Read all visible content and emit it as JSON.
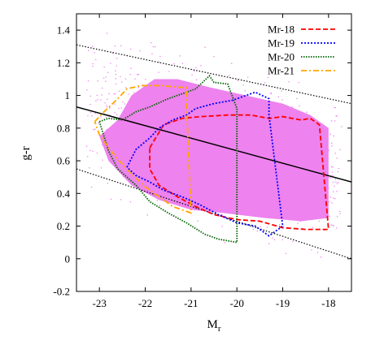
{
  "chart_data": {
    "type": "scatter",
    "title": "",
    "xlabel": "M",
    "xlabel_sub": "r",
    "ylabel": "g-r",
    "xlim": [
      -23.5,
      -17.5
    ],
    "ylim": [
      -0.2,
      1.5
    ],
    "x_ticks": [
      -23,
      -22,
      -21,
      -20,
      -19,
      -18
    ],
    "x_tick_labels": [
      "-23",
      "-22",
      "-21",
      "-20",
      "-19",
      "-18"
    ],
    "y_ticks": [
      -0.2,
      0,
      0.2,
      0.4,
      0.6,
      0.8,
      1,
      1.2,
      1.4
    ],
    "y_tick_labels": [
      "-0.2",
      "0",
      "0.2",
      "0.4",
      "0.6",
      "0.8",
      "1",
      "1.2",
      "1.4"
    ],
    "grid": false,
    "legend_position": "top-right",
    "scatter_cloud": {
      "color": "#ee82ee",
      "boundary": [
        [
          -22.6,
          0.85
        ],
        [
          -22.3,
          1.0
        ],
        [
          -21.8,
          1.1
        ],
        [
          -21.3,
          1.1
        ],
        [
          -20.6,
          1.05
        ],
        [
          -19.8,
          1.0
        ],
        [
          -19.0,
          0.95
        ],
        [
          -18.4,
          0.88
        ],
        [
          -18.0,
          0.8
        ],
        [
          -18.0,
          0.25
        ],
        [
          -18.6,
          0.23
        ],
        [
          -19.4,
          0.25
        ],
        [
          -20.3,
          0.28
        ],
        [
          -21.0,
          0.3
        ],
        [
          -21.7,
          0.36
        ],
        [
          -22.3,
          0.45
        ],
        [
          -22.8,
          0.6
        ],
        [
          -23.0,
          0.75
        ]
      ]
    },
    "reference_lines": [
      {
        "style": "solid",
        "color": "#000000",
        "points": [
          [
            -23.5,
            0.93
          ],
          [
            -17.5,
            0.47
          ]
        ]
      },
      {
        "style": "dotted",
        "color": "#000000",
        "points": [
          [
            -23.5,
            1.31
          ],
          [
            -17.5,
            0.95
          ]
        ]
      },
      {
        "style": "dotted",
        "color": "#000000",
        "points": [
          [
            -23.5,
            0.55
          ],
          [
            -17.5,
            0.0
          ]
        ]
      }
    ],
    "series": [
      {
        "name": "Mr-18",
        "color": "#ff0000",
        "dash": "6,3",
        "points": [
          [
            -21.9,
            0.68
          ],
          [
            -21.6,
            0.82
          ],
          [
            -21.2,
            0.86
          ],
          [
            -20.8,
            0.87
          ],
          [
            -20.2,
            0.88
          ],
          [
            -19.7,
            0.88
          ],
          [
            -19.3,
            0.86
          ],
          [
            -19.0,
            0.87
          ],
          [
            -18.6,
            0.85
          ],
          [
            -18.4,
            0.86
          ],
          [
            -18.2,
            0.82
          ],
          [
            -18.0,
            0.18
          ],
          [
            -18.5,
            0.18
          ],
          [
            -19.0,
            0.19
          ],
          [
            -19.5,
            0.23
          ],
          [
            -20.0,
            0.24
          ],
          [
            -20.5,
            0.27
          ],
          [
            -20.9,
            0.32
          ],
          [
            -21.3,
            0.38
          ],
          [
            -21.7,
            0.45
          ],
          [
            -21.9,
            0.55
          ],
          [
            -21.9,
            0.68
          ]
        ]
      },
      {
        "name": "Mr-19",
        "color": "#0000ff",
        "dash": "2,2",
        "points": [
          [
            -22.4,
            0.56
          ],
          [
            -22.2,
            0.67
          ],
          [
            -21.9,
            0.74
          ],
          [
            -21.7,
            0.8
          ],
          [
            -21.4,
            0.85
          ],
          [
            -21.1,
            0.88
          ],
          [
            -20.9,
            0.92
          ],
          [
            -20.5,
            0.95
          ],
          [
            -20.1,
            0.97
          ],
          [
            -19.6,
            1.02
          ],
          [
            -19.3,
            0.98
          ],
          [
            -19.3,
            0.88
          ],
          [
            -19.0,
            0.2
          ],
          [
            -19.3,
            0.14
          ],
          [
            -19.6,
            0.2
          ],
          [
            -20.0,
            0.22
          ],
          [
            -20.4,
            0.27
          ],
          [
            -20.8,
            0.33
          ],
          [
            -21.2,
            0.38
          ],
          [
            -21.6,
            0.42
          ],
          [
            -21.9,
            0.47
          ],
          [
            -22.2,
            0.51
          ],
          [
            -22.4,
            0.56
          ]
        ]
      },
      {
        "name": "Mr-20",
        "color": "#006400",
        "dash": "1.5,1.5",
        "points": [
          [
            -23.0,
            0.84
          ],
          [
            -22.8,
            0.86
          ],
          [
            -22.5,
            0.85
          ],
          [
            -22.2,
            0.9
          ],
          [
            -21.9,
            0.93
          ],
          [
            -21.5,
            0.98
          ],
          [
            -21.2,
            1.01
          ],
          [
            -20.9,
            1.04
          ],
          [
            -20.6,
            1.12
          ],
          [
            -20.5,
            1.08
          ],
          [
            -20.2,
            1.07
          ],
          [
            -20.0,
            0.92
          ],
          [
            -20.0,
            0.1
          ],
          [
            -20.4,
            0.12
          ],
          [
            -20.7,
            0.15
          ],
          [
            -21.1,
            0.22
          ],
          [
            -21.5,
            0.28
          ],
          [
            -21.9,
            0.35
          ],
          [
            -22.2,
            0.45
          ],
          [
            -22.6,
            0.55
          ],
          [
            -22.8,
            0.66
          ],
          [
            -23.0,
            0.84
          ]
        ]
      },
      {
        "name": "Mr-21",
        "color": "#ffa500",
        "dash": "7,3,2,3",
        "points": [
          [
            -23.1,
            0.84
          ],
          [
            -22.9,
            0.9
          ],
          [
            -22.6,
            0.98
          ],
          [
            -22.4,
            1.04
          ],
          [
            -22.1,
            1.06
          ],
          [
            -21.6,
            1.06
          ],
          [
            -21.3,
            1.05
          ],
          [
            -21.1,
            1.05
          ],
          [
            -21.1,
            0.95
          ],
          [
            -21.0,
            0.28
          ],
          [
            -21.4,
            0.32
          ],
          [
            -21.7,
            0.38
          ],
          [
            -22.0,
            0.44
          ],
          [
            -22.3,
            0.52
          ],
          [
            -22.6,
            0.61
          ],
          [
            -22.8,
            0.68
          ],
          [
            -23.0,
            0.76
          ],
          [
            -23.1,
            0.84
          ]
        ]
      }
    ]
  }
}
